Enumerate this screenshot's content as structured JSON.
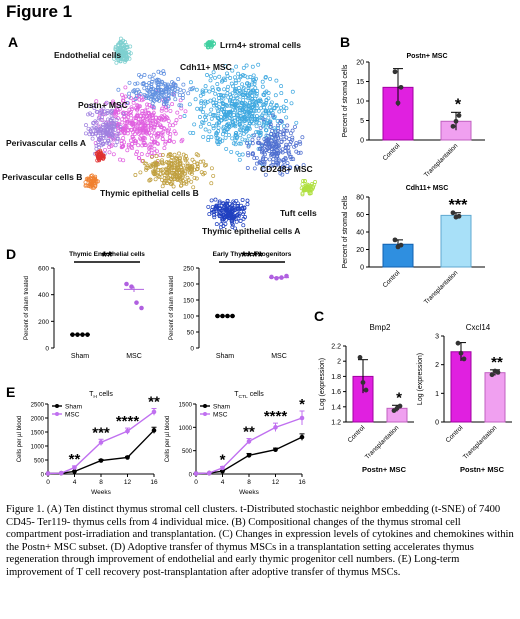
{
  "figure_title": "Figure 1",
  "panels": {
    "A": {
      "letter": "A",
      "clusters": [
        "Endothelial cells",
        "Lrrn4+ stromal cells",
        "Cdh11+ MSC",
        "Postn+ MSC",
        "Perivascular cells A",
        "Perivascular cells B",
        "CD248+ MSC",
        "Thymic epithelial cells B",
        "Tuft cells",
        "Thymic epithelial cells A"
      ]
    },
    "B": {
      "letter": "B"
    },
    "C": {
      "letter": "C"
    },
    "D": {
      "letter": "D"
    },
    "E": {
      "letter": "E"
    }
  },
  "caption": "Figure 1. (A) Ten distinct thymus stromal cell clusters. t-Distributed stochastic neighbor embedding (t-SNE) of 7400 CD45- Ter119- thymus cells from 4 individual mice. (B) Compositional changes of the thymus stromal cell compartment post-irradiation and transplantation. (C) Changes in expression levels of cytokines and chemokines within the Postn+ MSC subset. (D) Adoptive transfer of thymus MSCs in a transplantation setting accelerates thymus regeneration through improvement of endothelial and early thymic progenitor cell numbers. (E) Long-term improvement of T cell recovery post-transplantation after adoptive transfer of thymus MSCs.",
  "colors": {
    "magenta": "#e020e0",
    "light_magenta": "#f0a0f0",
    "blue": "#2f8fe0",
    "light_blue": "#a8e0f8",
    "purple": "#b060e0",
    "black": "#000000"
  },
  "chart_data": [
    {
      "id": "B1",
      "type": "bar",
      "title": "Postn+ MSC",
      "ylabel": "Percent of stromal cells",
      "categories": [
        "Control",
        "Transplantation"
      ],
      "values": [
        13.5,
        4.8
      ],
      "errors": [
        4.8,
        2.3
      ],
      "points": [
        [
          17.5,
          9.5,
          13.5
        ],
        [
          3.5,
          4.8,
          6.3
        ]
      ],
      "ylim": [
        0,
        20
      ],
      "yticks": [
        0,
        5,
        10,
        15,
        20
      ],
      "significance": "*"
    },
    {
      "id": "B2",
      "type": "bar",
      "title": "Cdh11+ MSC",
      "ylabel": "Percent of stromal cells",
      "categories": [
        "Control",
        "Transplantation"
      ],
      "values": [
        26,
        59
      ],
      "errors": [
        5,
        3
      ],
      "points": [
        [
          31,
          23,
          25
        ],
        [
          62,
          57,
          58
        ]
      ],
      "ylim": [
        0,
        80
      ],
      "yticks": [
        0,
        20,
        40,
        60,
        80
      ],
      "significance": "***"
    },
    {
      "id": "C1",
      "type": "bar",
      "title": "Bmp2",
      "ylabel": "Log (expression)",
      "categories": [
        "Control",
        "Transplantation"
      ],
      "values": [
        1.8,
        1.38
      ],
      "errors": [
        0.22,
        0.04
      ],
      "points": [
        [
          2.05,
          1.72,
          1.62
        ],
        [
          1.35,
          1.38,
          1.41
        ]
      ],
      "ylim": [
        1.2,
        2.2
      ],
      "yticks": [
        1.2,
        1.4,
        1.6,
        1.8,
        2.0,
        2.2
      ],
      "significance": "*",
      "footer": "Postn+ MSC"
    },
    {
      "id": "C2",
      "type": "bar",
      "title": "Cxcl14",
      "ylabel": "Log (expression)",
      "categories": [
        "Control",
        "Transplantation"
      ],
      "values": [
        2.45,
        1.72
      ],
      "errors": [
        0.32,
        0.1
      ],
      "points": [
        [
          2.75,
          2.4,
          2.2
        ],
        [
          1.65,
          1.78,
          1.73
        ]
      ],
      "ylim": [
        0,
        3
      ],
      "yticks": [
        0,
        1,
        2,
        3
      ],
      "significance": "**",
      "footer": "Postn+ MSC"
    },
    {
      "id": "D1",
      "type": "scatter",
      "title": "Thymic Endothelial cells",
      "ylabel": "Percent of sham treated",
      "categories": [
        "Sham",
        "MSC"
      ],
      "points": [
        [
          100,
          100,
          100,
          100
        ],
        [
          480,
          460,
          340,
          300
        ]
      ],
      "means": [
        100,
        440
      ],
      "ylim": [
        0,
        600
      ],
      "yticks": [
        0,
        200,
        400,
        600
      ],
      "significance": "**"
    },
    {
      "id": "D2",
      "type": "scatter",
      "title": "Early Thymic Progenitors",
      "ylabel": "Percent of sham treated",
      "categories": [
        "Sham",
        "MSC"
      ],
      "points": [
        [
          100,
          100,
          100,
          100
        ],
        [
          222,
          218,
          220,
          225
        ]
      ],
      "means": [
        100,
        220
      ],
      "ylim": [
        0,
        250
      ],
      "yticks": [
        0,
        50,
        100,
        150,
        200,
        250
      ],
      "significance": "****"
    },
    {
      "id": "E1",
      "type": "line",
      "title": "T_H cells",
      "ylabel": "Cells per µl blood",
      "xlabel": "Weeks",
      "x": [
        0,
        2,
        4,
        8,
        12,
        16
      ],
      "xticks": [
        0,
        4,
        8,
        12,
        16
      ],
      "ylim": [
        0,
        2500
      ],
      "yticks": [
        0,
        500,
        1000,
        1500,
        2000,
        2500
      ],
      "series": [
        {
          "name": "Sham",
          "values": [
            20,
            30,
            90,
            480,
            590,
            1560
          ],
          "errors": [
            0,
            0,
            20,
            40,
            40,
            110
          ]
        },
        {
          "name": "MSC",
          "values": [
            20,
            30,
            230,
            1130,
            1530,
            2220
          ],
          "errors": [
            0,
            0,
            60,
            110,
            110,
            120
          ]
        }
      ],
      "annotations": [
        {
          "x": 4,
          "text": "**"
        },
        {
          "x": 8,
          "text": "***"
        },
        {
          "x": 12,
          "text": "****"
        },
        {
          "x": 16,
          "text": "**"
        }
      ]
    },
    {
      "id": "E2",
      "type": "line",
      "title": "T_CTL cells",
      "ylabel": "Cells per µl blood",
      "xlabel": "Weeks",
      "x": [
        0,
        2,
        4,
        8,
        12,
        16
      ],
      "xticks": [
        0,
        4,
        8,
        12,
        16
      ],
      "ylim": [
        0,
        1500
      ],
      "yticks": [
        0,
        500,
        1000,
        1500
      ],
      "series": [
        {
          "name": "Sham",
          "values": [
            10,
            20,
            60,
            400,
            520,
            790
          ],
          "errors": [
            0,
            0,
            15,
            40,
            35,
            70
          ]
        },
        {
          "name": "MSC",
          "values": [
            10,
            20,
            130,
            700,
            1000,
            1200
          ],
          "errors": [
            0,
            0,
            30,
            60,
            90,
            150
          ]
        }
      ],
      "annotations": [
        {
          "x": 4,
          "text": "*"
        },
        {
          "x": 8,
          "text": "**"
        },
        {
          "x": 12,
          "text": "****"
        },
        {
          "x": 16,
          "text": "*"
        }
      ]
    }
  ]
}
